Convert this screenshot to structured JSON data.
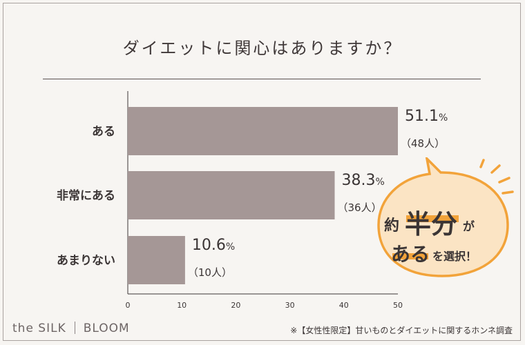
{
  "title": "ダイエットに関心はありますか？",
  "chart_data": {
    "type": "bar",
    "orientation": "horizontal",
    "categories": [
      "ある",
      "非常にある",
      "あまりない"
    ],
    "values": [
      51.1,
      38.3,
      10.6
    ],
    "value_suffix": "%",
    "counts": [
      "（48人）",
      "（36人）",
      "（10人）"
    ],
    "xlim": [
      0,
      50
    ],
    "xticks": [
      0,
      10,
      20,
      30,
      40,
      50
    ],
    "bar_color": "#a59796"
  },
  "callout": {
    "pre": "約",
    "emphasis": "半分",
    "post": "が",
    "line2_emphasis": "ある",
    "line2_rest": "を選択！",
    "fill_color": "#fbe4c4",
    "stroke_color": "#f2a33a",
    "highlight_color": "#f2a33a"
  },
  "footer": {
    "brand_left": "the SILK",
    "brand_right": "BLOOM",
    "source": "※【女性性限定】甘いものとダイエットに関するホンネ調査"
  }
}
